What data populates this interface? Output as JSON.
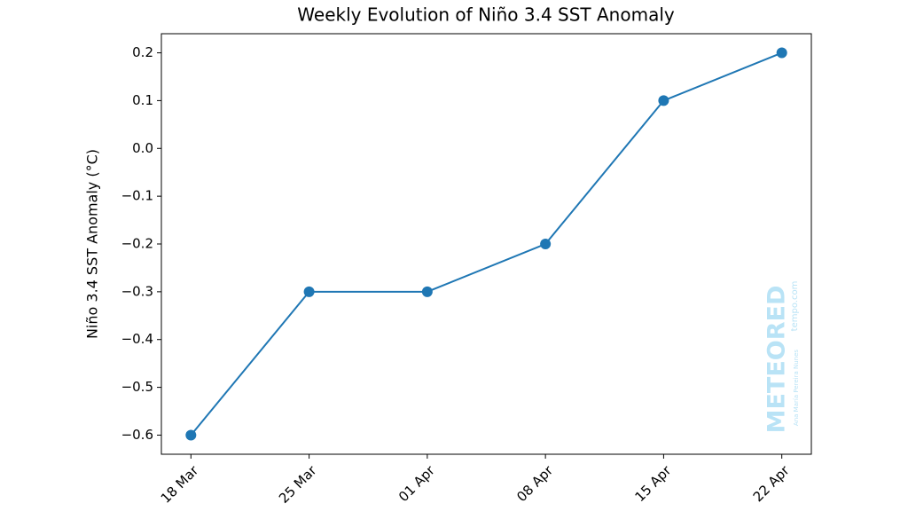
{
  "chart_data": {
    "type": "line",
    "title": "Weekly Evolution of Niño 3.4 SST Anomaly",
    "y_label": "Niño 3.4 SST Anomaly (°C)",
    "categories": [
      "18 Mar",
      "25 Mar",
      "01 Apr",
      "08 Apr",
      "15 Apr",
      "22 Apr"
    ],
    "series": [
      {
        "name": "Niño 3.4 SST Anomaly",
        "color": "#1f77b4",
        "values": [
          -0.6,
          -0.3,
          -0.3,
          -0.2,
          0.1,
          0.2
        ]
      }
    ],
    "ylim": [
      -0.64,
      0.24
    ],
    "yticks": [
      {
        "value": -0.6,
        "label": "−0.6"
      },
      {
        "value": -0.5,
        "label": "−0.5"
      },
      {
        "value": -0.4,
        "label": "−0.4"
      },
      {
        "value": -0.3,
        "label": "−0.3"
      },
      {
        "value": -0.2,
        "label": "−0.2"
      },
      {
        "value": -0.1,
        "label": "−0.1"
      },
      {
        "value": 0,
        "label": "0.0"
      },
      0.1,
      0.2
    ],
    "grid": false,
    "watermark": {
      "brand": "METEORED",
      "site": "tempo.com",
      "author": "Ana María Pereira Nunes"
    }
  }
}
